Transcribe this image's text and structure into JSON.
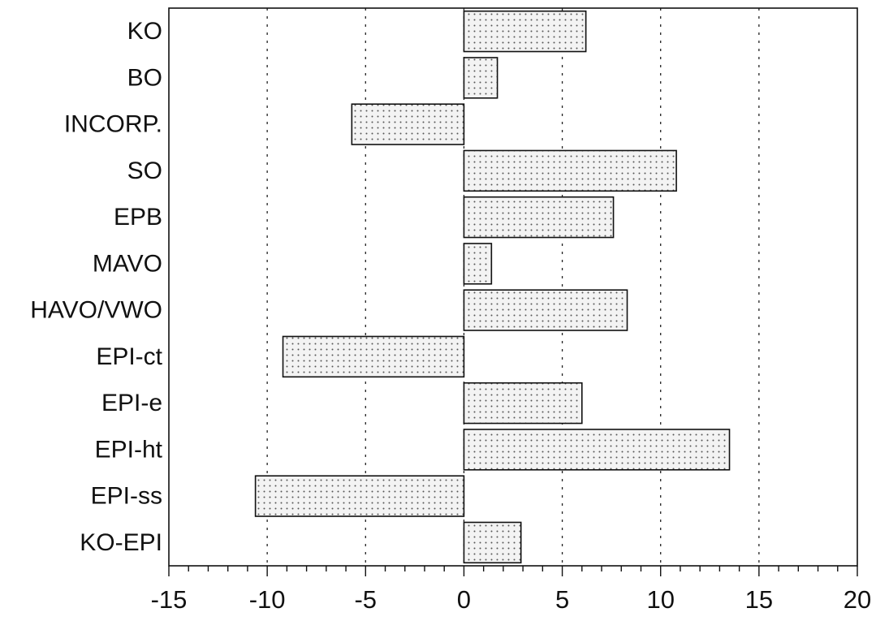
{
  "chart_data": {
    "type": "bar",
    "orientation": "horizontal",
    "categories": [
      "KO",
      "BO",
      "INCORP.",
      "SO",
      "EPB",
      "MAVO",
      "HAVO/VWO",
      "EPI-ct",
      "EPI-e",
      "EPI-ht",
      "EPI-ss",
      "KO-EPI"
    ],
    "values": [
      6.2,
      1.7,
      -5.7,
      10.8,
      7.6,
      1.4,
      8.3,
      -9.2,
      6.0,
      13.5,
      -10.6,
      2.9
    ],
    "title": "",
    "xlabel": "",
    "ylabel": "",
    "xlim": [
      -15,
      20
    ],
    "x_ticks": [
      -15,
      -10,
      -5,
      0,
      5,
      10,
      15,
      20
    ],
    "grid": "vertical dotted lines at major ticks",
    "legend": "none",
    "bar_fill": "dotted",
    "colors": {
      "bar_fill": "#f3f3f3",
      "dots": "#555555",
      "outline": "#111111",
      "background": "#ffffff"
    }
  }
}
